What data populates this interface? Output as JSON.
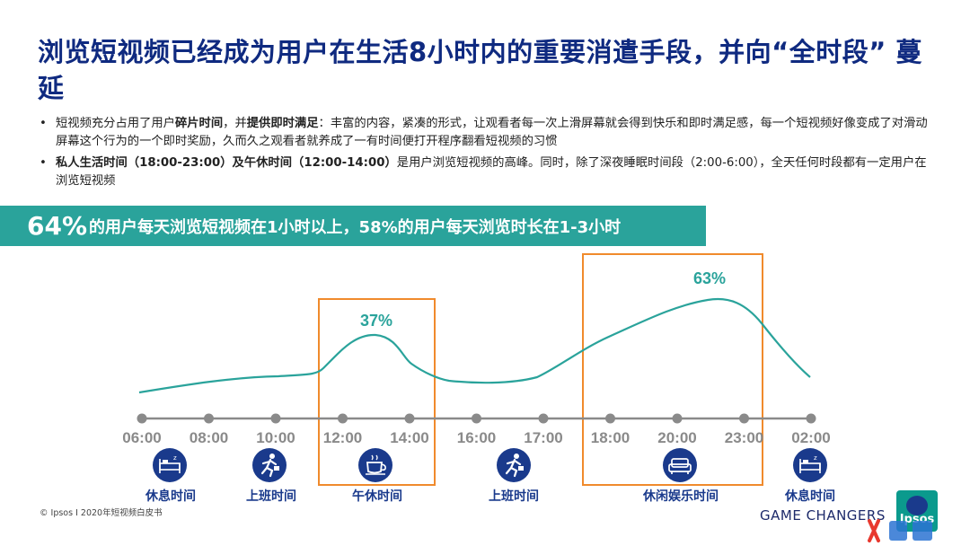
{
  "title": "浏览短视频已经成为用户在生活8小时内的重要消遣手段，并向“全时段” 蔓延",
  "bullets": [
    {
      "segments": [
        {
          "text": "短视频充分占用了用户",
          "bold": false
        },
        {
          "text": "碎片时间",
          "bold": true
        },
        {
          "text": "，并",
          "bold": false
        },
        {
          "text": "提供即时满足",
          "bold": true
        },
        {
          "text": "：丰富的内容，紧凑的形式，让观看者每一次上滑屏幕就会得到快乐和即时满足感，每一个短视频好像变成了对滑动屏幕这个行为的一个即时奖励，久而久之观看者就养成了一有时间便打开程序翻看短视频的习惯",
          "bold": false
        }
      ]
    },
    {
      "segments": [
        {
          "text": "私人生活时间（18:00-23:00）及午休时间（12:00-14:00）",
          "bold": true
        },
        {
          "text": "是用户浏览短视频的高峰。同时，除了深夜睡眠时间段（2:00-6:00），全天任何时段都有一定用户在浏览短视频",
          "bold": false
        }
      ]
    }
  ],
  "banner": {
    "big": "64%",
    "rest": "的用户每天浏览短视频在1小时以上，58%的用户每天浏览时长在1-3小时"
  },
  "chart_data": {
    "type": "line",
    "x": [
      "06:00",
      "08:00",
      "10:00",
      "12:00",
      "14:00",
      "16:00",
      "17:00",
      "18:00",
      "20:00",
      "23:00",
      "02:00"
    ],
    "annotations": [
      {
        "label": "37%",
        "at": "12:00-14:00 peak"
      },
      {
        "label": "63%",
        "at": "20:00-23:00 peak"
      }
    ],
    "highlight_ranges": [
      [
        "12:00",
        "14:00"
      ],
      [
        "18:00",
        "23:00"
      ]
    ],
    "periods": [
      {
        "label": "休息时间",
        "icon": "bed-icon"
      },
      {
        "label": "上班时间",
        "icon": "running-person-icon"
      },
      {
        "label": "午休时间",
        "icon": "coffee-cup-icon"
      },
      {
        "label": "上班时间",
        "icon": "running-person-icon"
      },
      {
        "label": "休闲娱乐时间",
        "icon": "sofa-icon"
      },
      {
        "label": "休息时间",
        "icon": "bed-icon"
      }
    ],
    "colors": {
      "line": "#2aa39b",
      "timeline": "#8a8a8a",
      "highlight": "#f08a2c",
      "icon_bg": "#1a3a8c"
    }
  },
  "footer": {
    "note": "© Ipsos I 2020年短视频白皮书",
    "brand": "GAME CHANGERS",
    "logo": "Ipsos"
  }
}
